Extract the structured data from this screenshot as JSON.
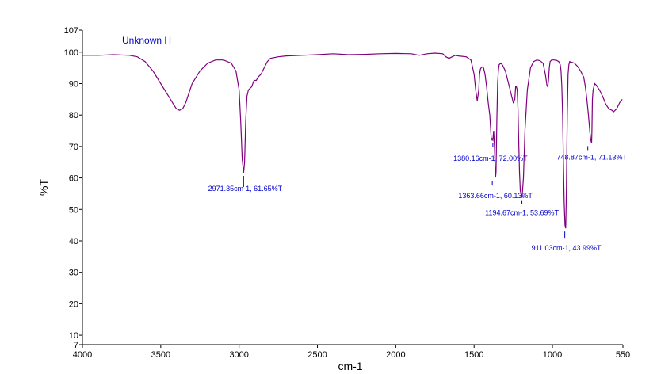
{
  "chart_data": {
    "type": "line",
    "title": "",
    "legend": "Unknown H",
    "xlabel": "cm-1",
    "ylabel": "%T",
    "xlim": [
      4000,
      550
    ],
    "ylim": [
      7,
      107
    ],
    "x_reversed": true,
    "x_ticks": [
      "4000",
      "3500",
      "3000",
      "2500",
      "2000",
      "1500",
      "1000",
      "550"
    ],
    "y_ticks": [
      "107",
      "100",
      "90",
      "80",
      "70",
      "60",
      "50",
      "40",
      "30",
      "20",
      "10",
      "7"
    ],
    "grid": false,
    "colors": {
      "line": "#800080",
      "annotation": "#0000cc"
    },
    "series": [
      {
        "x": [
          4000,
          3900,
          3800,
          3700,
          3650,
          3600,
          3550,
          3500,
          3450,
          3420,
          3400,
          3380,
          3360,
          3340,
          3320,
          3300,
          3250,
          3200,
          3150,
          3100,
          3050,
          3020,
          3000,
          2990,
          2980,
          2971,
          2965,
          2958,
          2950,
          2940,
          2930,
          2920,
          2905,
          2890,
          2880,
          2870,
          2860,
          2850,
          2840,
          2830,
          2820,
          2800,
          2750,
          2700,
          2600,
          2500,
          2400,
          2300,
          2200,
          2100,
          2000,
          1900,
          1850,
          1800,
          1750,
          1700,
          1680,
          1660,
          1640,
          1620,
          1600,
          1550,
          1520,
          1500,
          1490,
          1480,
          1470,
          1465,
          1460,
          1455,
          1450,
          1440,
          1430,
          1420,
          1410,
          1400,
          1395,
          1390,
          1385,
          1380,
          1375,
          1370,
          1365,
          1363,
          1360,
          1355,
          1350,
          1345,
          1340,
          1330,
          1320,
          1300,
          1280,
          1260,
          1250,
          1240,
          1235,
          1230,
          1225,
          1220,
          1215,
          1210,
          1205,
          1200,
          1194,
          1185,
          1175,
          1160,
          1140,
          1120,
          1100,
          1080,
          1060,
          1045,
          1035,
          1030,
          1025,
          1020,
          1015,
          1005,
          990,
          975,
          960,
          950,
          945,
          940,
          935,
          930,
          925,
          920,
          915,
          911,
          905,
          900,
          895,
          890,
          880,
          860,
          840,
          820,
          800,
          790,
          780,
          770,
          760,
          755,
          750,
          748,
          745,
          740,
          730,
          720,
          700,
          680,
          660,
          640,
          620,
          610,
          600,
          590,
          580,
          570,
          560,
          555
        ],
        "y": [
          99,
          99,
          99.2,
          99,
          98.5,
          97,
          94,
          90,
          86,
          83.5,
          82,
          81.5,
          82,
          84,
          87,
          90,
          94,
          96.5,
          97.5,
          97.5,
          96.5,
          94,
          88,
          78,
          66,
          61.65,
          65,
          78,
          86,
          88,
          88.5,
          89,
          91,
          91,
          92,
          92.5,
          93,
          94,
          95,
          96,
          97,
          98,
          98.5,
          98.8,
          99,
          99.2,
          99.5,
          99.2,
          99.3,
          99.5,
          99.6,
          99.5,
          99,
          99.5,
          99.7,
          99.5,
          98.5,
          98,
          98.5,
          99,
          98.8,
          98.5,
          97.5,
          93,
          88,
          84.5,
          88,
          93,
          94.5,
          95,
          95.3,
          95,
          93,
          89,
          84,
          80,
          76,
          72,
          72.5,
          72,
          75,
          70,
          62,
          60.13,
          62,
          78,
          90,
          94,
          96,
          96.5,
          96,
          94,
          90,
          86,
          84,
          85,
          89,
          89,
          88,
          82,
          72,
          62,
          56,
          55,
          53.69,
          60,
          75,
          88,
          95,
          97,
          97.5,
          97.3,
          96.5,
          93,
          89.5,
          89,
          91,
          95,
          97,
          97.5,
          97.5,
          97.4,
          97,
          96,
          94,
          89,
          80,
          65,
          52,
          45,
          43.99,
          55,
          80,
          93,
          96,
          97,
          96.8,
          96.5,
          95.5,
          94,
          92,
          89,
          85,
          80,
          74,
          72,
          71.13,
          75,
          85,
          88,
          90,
          89.5,
          88,
          86,
          83.5,
          82,
          81.5,
          81,
          81.5,
          82,
          83,
          84,
          84.5,
          85
        ]
      }
    ],
    "annotations": [
      {
        "text": "2971.35cm-1, 61.65%T",
        "x": 2971.35,
        "y": 61.65
      },
      {
        "text": "1380.16cm-1, 72.00%T",
        "x": 1380.16,
        "y": 72.0
      },
      {
        "text": "1363.66cm-1, 60.13%T",
        "x": 1363.66,
        "y": 60.13
      },
      {
        "text": "1194.67cm-1, 53.69%T",
        "x": 1194.67,
        "y": 53.69
      },
      {
        "text": "911.03cm-1, 43.99%T",
        "x": 911.03,
        "y": 43.99
      },
      {
        "text": "748.87cm-1, 71.13%T",
        "x": 748.87,
        "y": 71.13
      }
    ]
  }
}
